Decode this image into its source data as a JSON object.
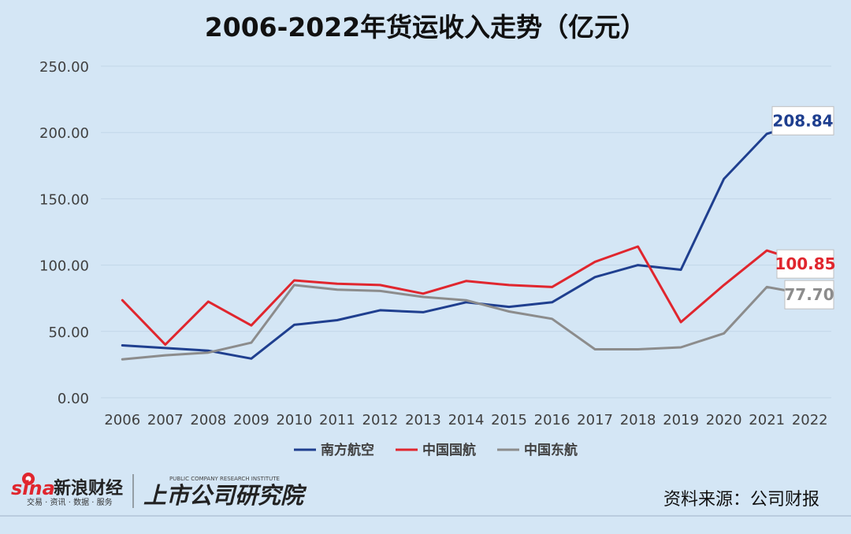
{
  "chart_data": {
    "type": "line",
    "title": "2006-2022年货运收入走势（亿元）",
    "xlabel": "",
    "ylabel": "",
    "categories": [
      "2006",
      "2007",
      "2008",
      "2009",
      "2010",
      "2011",
      "2012",
      "2013",
      "2014",
      "2015",
      "2016",
      "2017",
      "2018",
      "2019",
      "2020",
      "2021",
      "2022"
    ],
    "ylim": [
      0,
      250
    ],
    "yticks": [
      "0.00",
      "50.00",
      "100.00",
      "150.00",
      "200.00",
      "250.00"
    ],
    "grid": true,
    "legend": "bottom",
    "series": [
      {
        "name": "南方航空",
        "color": "#1f3f8f",
        "values": [
          39.5,
          37.5,
          35.5,
          29.5,
          55,
          58.5,
          66,
          64.5,
          72,
          68.5,
          72,
          91,
          100,
          96.5,
          165,
          199,
          208.84
        ],
        "end_label": "208.84"
      },
      {
        "name": "中国国航",
        "color": "#e0262e",
        "values": [
          73.5,
          40,
          72.5,
          54.5,
          88.5,
          86,
          85,
          78.5,
          88,
          85,
          83.5,
          102.5,
          114,
          57,
          85,
          111,
          100.85
        ],
        "end_label": "100.85"
      },
      {
        "name": "中国东航",
        "color": "#8c8c8c",
        "values": [
          29,
          32,
          34,
          41.5,
          85,
          81.5,
          80.5,
          76,
          73.5,
          65,
          59.5,
          36.5,
          36.5,
          38,
          48.5,
          83.5,
          77.7
        ],
        "end_label": "77.70"
      }
    ]
  },
  "footer": {
    "sina_logo": "sina",
    "sina_name": "新浪财经",
    "sina_tagline": "交易 · 资讯 · 数据 · 服务",
    "research_name": "上市公司研究院",
    "research_en": "PUBLIC COMPANY RESEARCH INSTITUTE",
    "source": "资料来源：公司财报"
  }
}
